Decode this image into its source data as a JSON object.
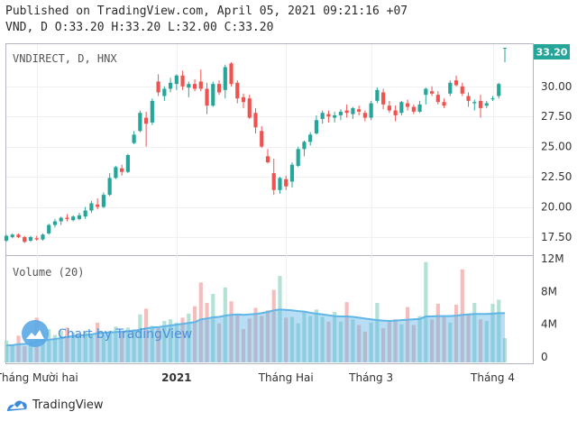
{
  "header": {
    "line1": "Published on TradingView.com, April 05, 2021 09:21:16 +07",
    "line2": "VND, D O:33.20 H:33.20 L:32.00 C:33.20"
  },
  "footer": {
    "brand": "TradingView"
  },
  "colors": {
    "up": "#26a69a",
    "down": "#ef5350",
    "volume_up": "#a7dccf",
    "volume_down": "#f5b1b1",
    "volume_ma": "#5fb6e6",
    "last_price_bg": "#26a69a"
  },
  "chart_data": {
    "type": "candlestick",
    "title": "VNDIRECT, D, HNX",
    "watermark": "Chart by TradingView",
    "last_price_label": "33.20",
    "price_axis": {
      "min": 16,
      "max": 33.5,
      "ticks": [
        "17.50",
        "20.00",
        "22.50",
        "25.00",
        "27.50",
        "30.00"
      ]
    },
    "volume_label": "Volume (20)",
    "volume_axis": {
      "min": 0,
      "max": 12,
      "unit": "M",
      "ticks": [
        "0",
        "4M",
        "8M",
        "12M"
      ]
    },
    "x_labels": [
      {
        "label": "Tháng Mười hai",
        "index": 5,
        "bold": false
      },
      {
        "label": "2021",
        "index": 28,
        "bold": true
      },
      {
        "label": "Tháng Hai",
        "index": 46,
        "bold": false
      },
      {
        "label": "Tháng 3",
        "index": 60,
        "bold": false
      },
      {
        "label": "Tháng 4",
        "index": 80,
        "bold": false
      }
    ],
    "candles": [
      [
        17.2,
        17.7,
        17.1,
        17.6
      ],
      [
        17.5,
        17.8,
        17.4,
        17.7
      ],
      [
        17.7,
        17.8,
        17.4,
        17.5
      ],
      [
        17.5,
        17.6,
        17.0,
        17.1
      ],
      [
        17.2,
        17.6,
        17.1,
        17.5
      ],
      [
        17.4,
        17.6,
        17.2,
        17.3
      ],
      [
        17.3,
        17.8,
        17.2,
        17.7
      ],
      [
        17.8,
        18.6,
        17.7,
        18.5
      ],
      [
        18.5,
        19.0,
        18.3,
        18.8
      ],
      [
        18.8,
        19.2,
        18.5,
        19.1
      ],
      [
        19.1,
        19.4,
        18.8,
        19.0
      ],
      [
        18.9,
        19.3,
        18.8,
        19.2
      ],
      [
        19.0,
        19.5,
        18.9,
        19.3
      ],
      [
        19.2,
        20.0,
        19.0,
        19.7
      ],
      [
        19.7,
        20.5,
        19.5,
        20.3
      ],
      [
        20.2,
        20.7,
        19.8,
        20.0
      ],
      [
        20.0,
        21.2,
        19.9,
        21.0
      ],
      [
        21.0,
        22.8,
        20.9,
        22.4
      ],
      [
        22.4,
        23.4,
        22.3,
        23.3
      ],
      [
        23.2,
        23.5,
        22.6,
        22.9
      ],
      [
        22.9,
        24.4,
        22.8,
        24.3
      ],
      [
        25.3,
        26.3,
        25.2,
        26.0
      ],
      [
        26.3,
        28.0,
        26.2,
        27.8
      ],
      [
        27.4,
        27.9,
        25.0,
        26.9
      ],
      [
        27.0,
        29.0,
        26.8,
        28.8
      ],
      [
        30.4,
        31.0,
        29.2,
        29.5
      ],
      [
        29.2,
        30.0,
        28.8,
        29.8
      ],
      [
        29.8,
        30.7,
        29.5,
        30.3
      ],
      [
        30.2,
        31.0,
        29.7,
        30.9
      ],
      [
        30.9,
        31.3,
        29.7,
        30.0
      ],
      [
        29.9,
        30.4,
        29.1,
        30.2
      ],
      [
        30.2,
        30.6,
        29.6,
        29.8
      ],
      [
        30.4,
        31.4,
        29.6,
        29.8
      ],
      [
        29.8,
        30.3,
        27.7,
        28.4
      ],
      [
        28.4,
        30.4,
        28.3,
        30.2
      ],
      [
        30.2,
        30.5,
        29.3,
        29.5
      ],
      [
        29.7,
        31.8,
        29.0,
        31.6
      ],
      [
        31.9,
        32.0,
        30.0,
        30.2
      ],
      [
        30.3,
        30.5,
        28.6,
        29.0
      ],
      [
        29.1,
        29.4,
        28.2,
        28.7
      ],
      [
        29.0,
        29.3,
        27.3,
        27.4
      ],
      [
        27.8,
        28.2,
        26.1,
        26.6
      ],
      [
        26.3,
        26.7,
        24.9,
        25.0
      ],
      [
        24.2,
        24.8,
        23.6,
        23.7
      ],
      [
        22.8,
        24.0,
        21.0,
        21.4
      ],
      [
        21.4,
        22.5,
        21.1,
        22.4
      ],
      [
        22.3,
        22.6,
        21.4,
        21.7
      ],
      [
        22.1,
        23.7,
        21.6,
        23.5
      ],
      [
        23.4,
        25.0,
        23.3,
        24.8
      ],
      [
        24.8,
        25.5,
        24.2,
        25.4
      ],
      [
        25.4,
        26.2,
        25.1,
        26.0
      ],
      [
        26.1,
        27.6,
        26.0,
        27.2
      ],
      [
        27.3,
        28.0,
        26.9,
        27.8
      ],
      [
        27.7,
        28.0,
        27.0,
        27.5
      ],
      [
        27.4,
        27.9,
        27.0,
        27.6
      ],
      [
        27.6,
        28.1,
        27.2,
        27.9
      ],
      [
        28.0,
        28.5,
        27.4,
        27.8
      ],
      [
        27.7,
        28.3,
        27.3,
        28.2
      ],
      [
        28.1,
        28.4,
        27.6,
        27.9
      ],
      [
        27.8,
        28.0,
        27.1,
        27.4
      ],
      [
        27.4,
        28.8,
        27.2,
        28.6
      ],
      [
        28.8,
        29.9,
        28.6,
        29.7
      ],
      [
        29.5,
        29.8,
        28.1,
        28.5
      ],
      [
        28.4,
        28.8,
        27.8,
        28.0
      ],
      [
        28.0,
        28.4,
        27.1,
        27.6
      ],
      [
        27.8,
        28.8,
        27.6,
        28.7
      ],
      [
        28.6,
        28.9,
        28.0,
        28.3
      ],
      [
        28.3,
        28.5,
        27.7,
        27.9
      ],
      [
        27.9,
        28.8,
        27.8,
        28.5
      ],
      [
        29.3,
        29.9,
        28.5,
        29.8
      ],
      [
        29.6,
        30.0,
        29.2,
        29.4
      ],
      [
        29.3,
        29.6,
        28.5,
        28.7
      ],
      [
        28.7,
        29.0,
        28.2,
        28.4
      ],
      [
        29.4,
        30.5,
        29.2,
        30.3
      ],
      [
        30.5,
        30.9,
        30.0,
        30.1
      ],
      [
        30.0,
        30.3,
        29.2,
        29.4
      ],
      [
        29.2,
        29.5,
        28.3,
        28.8
      ],
      [
        28.6,
        28.9,
        28.0,
        28.7
      ],
      [
        28.8,
        29.3,
        27.4,
        28.2
      ],
      [
        28.4,
        28.8,
        28.2,
        28.6
      ],
      [
        29.0,
        29.2,
        28.8,
        29.0
      ],
      [
        29.2,
        30.3,
        29.0,
        30.2
      ],
      [
        33.2,
        33.2,
        32.0,
        33.2
      ]
    ],
    "volume": [
      2.0,
      1.5,
      2.6,
      1.3,
      2.0,
      4.8,
      3.0,
      3.4,
      2.7,
      3.2,
      3.6,
      3.0,
      2.3,
      3.0,
      2.8,
      4.2,
      2.7,
      3.2,
      3.7,
      3.0,
      3.6,
      3.4,
      5.2,
      5.9,
      3.8,
      3.6,
      4.4,
      4.6,
      4.2,
      4.8,
      5.3,
      6.2,
      9.1,
      6.6,
      7.7,
      4.1,
      8.5,
      6.8,
      5.1,
      3.4,
      4.7,
      6.0,
      5.0,
      5.7,
      8.2,
      9.9,
      4.8,
      4.9,
      4.1,
      5.5,
      5.0,
      5.8,
      4.9,
      4.3,
      5.5,
      4.3,
      6.7,
      4.6,
      3.9,
      3.1,
      4.2,
      6.6,
      3.5,
      4.3,
      4.6,
      4.0,
      6.1,
      3.9,
      5.0,
      11.6,
      4.6,
      6.5,
      5.0,
      4.2,
      6.4,
      10.7,
      5.2,
      6.6,
      4.6,
      4.4,
      6.5,
      7.0,
      2.3
    ],
    "volume_ma": [
      1.4,
      1.45,
      1.55,
      1.6,
      1.65,
      1.9,
      2.0,
      2.1,
      2.2,
      2.3,
      2.45,
      2.55,
      2.6,
      2.7,
      2.75,
      2.9,
      2.95,
      3.0,
      3.05,
      3.1,
      3.15,
      3.2,
      3.35,
      3.5,
      3.6,
      3.65,
      3.75,
      3.85,
      3.95,
      4.05,
      4.15,
      4.25,
      4.6,
      4.7,
      4.85,
      4.9,
      5.05,
      5.15,
      5.2,
      5.15,
      5.2,
      5.25,
      5.35,
      5.5,
      5.7,
      5.8,
      5.75,
      5.7,
      5.6,
      5.55,
      5.4,
      5.3,
      5.2,
      5.1,
      5.0,
      4.95,
      4.95,
      4.9,
      4.8,
      4.7,
      4.6,
      4.5,
      4.45,
      4.4,
      4.45,
      4.5,
      4.55,
      4.6,
      4.65,
      4.95,
      4.95,
      5.0,
      5.0,
      5.0,
      5.05,
      5.15,
      5.2,
      5.25,
      5.25,
      5.25,
      5.3,
      5.35,
      5.35
    ]
  }
}
